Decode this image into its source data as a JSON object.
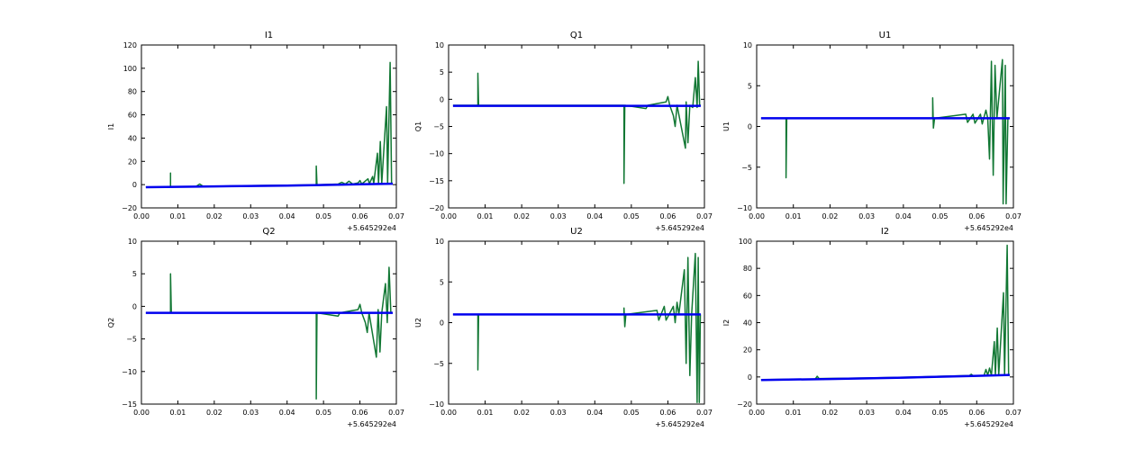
{
  "figure": {
    "background": "#ffffff",
    "colors": {
      "signal": "#117733",
      "baseline": "#0000ee",
      "axis": "#000000"
    }
  },
  "chart_data": [
    {
      "type": "line",
      "title": "I1",
      "ylabel": "I1",
      "xlim": [
        0.0,
        0.07
      ],
      "ylim": [
        -20,
        120
      ],
      "xticks": [
        "0.00",
        "0.01",
        "0.02",
        "0.03",
        "0.04",
        "0.05",
        "0.06",
        "0.07"
      ],
      "yticks": [
        -20,
        0,
        20,
        40,
        60,
        80,
        100,
        120
      ],
      "x_offset_label": "+5.645292e4",
      "series": [
        {
          "color": "#117733",
          "width": 1.5,
          "points": [
            [
              0.0012,
              -2
            ],
            [
              0.008,
              -2
            ],
            [
              0.008,
              10
            ],
            [
              0.008,
              -2
            ],
            [
              0.015,
              -1.5
            ],
            [
              0.016,
              0.5
            ],
            [
              0.017,
              -1.5
            ],
            [
              0.03,
              -0.8
            ],
            [
              0.04,
              -0.5
            ],
            [
              0.048,
              -0.2
            ],
            [
              0.048,
              16
            ],
            [
              0.0482,
              -0.2
            ],
            [
              0.054,
              0.5
            ],
            [
              0.055,
              2
            ],
            [
              0.056,
              0.5
            ],
            [
              0.057,
              3
            ],
            [
              0.058,
              0.5
            ],
            [
              0.0595,
              1.5
            ],
            [
              0.06,
              3.5
            ],
            [
              0.0605,
              0.5
            ],
            [
              0.0622,
              5
            ],
            [
              0.0626,
              0.8
            ],
            [
              0.0635,
              7
            ],
            [
              0.0638,
              1
            ],
            [
              0.0648,
              27
            ],
            [
              0.0651,
              1
            ],
            [
              0.0656,
              37
            ],
            [
              0.066,
              1
            ],
            [
              0.0673,
              67
            ],
            [
              0.0676,
              1
            ],
            [
              0.0683,
              105
            ],
            [
              0.0687,
              1
            ],
            [
              0.069,
              1
            ]
          ]
        },
        {
          "color": "#0000ee",
          "width": 2.5,
          "points": [
            [
              0.0012,
              -2.2
            ],
            [
              0.02,
              -1.5
            ],
            [
              0.04,
              -0.8
            ],
            [
              0.06,
              0.3
            ],
            [
              0.069,
              0.8
            ]
          ]
        }
      ]
    },
    {
      "type": "line",
      "title": "Q1",
      "ylabel": "Q1",
      "xlim": [
        0.0,
        0.07
      ],
      "ylim": [
        -20,
        10
      ],
      "xticks": [
        "0.00",
        "0.01",
        "0.02",
        "0.03",
        "0.04",
        "0.05",
        "0.06",
        "0.07"
      ],
      "yticks": [
        -20,
        -15,
        -10,
        -5,
        0,
        5,
        10
      ],
      "x_offset_label": "+5.645292e4",
      "series": [
        {
          "color": "#117733",
          "width": 1.5,
          "points": [
            [
              0.0012,
              -1.1
            ],
            [
              0.008,
              -1.1
            ],
            [
              0.008,
              4.8
            ],
            [
              0.0082,
              -1.1
            ],
            [
              0.048,
              -1.1
            ],
            [
              0.048,
              -15.5
            ],
            [
              0.0482,
              -1.1
            ],
            [
              0.054,
              -1.7
            ],
            [
              0.0545,
              -1.1
            ],
            [
              0.0595,
              -0.5
            ],
            [
              0.06,
              0.5
            ],
            [
              0.0605,
              -1.1
            ],
            [
              0.0615,
              -3
            ],
            [
              0.062,
              -5
            ],
            [
              0.0625,
              -1.1
            ],
            [
              0.0648,
              -9
            ],
            [
              0.065,
              -0.5
            ],
            [
              0.0655,
              -8
            ],
            [
              0.066,
              -1.1
            ],
            [
              0.0668,
              -1.5
            ],
            [
              0.0675,
              4
            ],
            [
              0.068,
              -1.5
            ],
            [
              0.0683,
              7
            ],
            [
              0.0687,
              -1.1
            ],
            [
              0.069,
              -1.1
            ]
          ]
        },
        {
          "color": "#0000ee",
          "width": 2.5,
          "points": [
            [
              0.0012,
              -1.2
            ],
            [
              0.069,
              -1.2
            ]
          ]
        }
      ]
    },
    {
      "type": "line",
      "title": "U1",
      "ylabel": "U1",
      "xlim": [
        0.0,
        0.07
      ],
      "ylim": [
        -10,
        10
      ],
      "xticks": [
        "0.00",
        "0.01",
        "0.02",
        "0.03",
        "0.04",
        "0.05",
        "0.06",
        "0.07"
      ],
      "yticks": [
        -10,
        -5,
        0,
        5,
        10
      ],
      "x_offset_label": "+5.645292e4",
      "series": [
        {
          "color": "#117733",
          "width": 1.5,
          "points": [
            [
              0.0012,
              1
            ],
            [
              0.008,
              1
            ],
            [
              0.008,
              -6.3
            ],
            [
              0.0082,
              1
            ],
            [
              0.048,
              1
            ],
            [
              0.048,
              3.5
            ],
            [
              0.0482,
              -0.2
            ],
            [
              0.0485,
              1
            ],
            [
              0.057,
              1.5
            ],
            [
              0.0575,
              0.5
            ],
            [
              0.059,
              1.5
            ],
            [
              0.0595,
              0.4
            ],
            [
              0.061,
              1.5
            ],
            [
              0.0615,
              0.3
            ],
            [
              0.0625,
              2
            ],
            [
              0.063,
              1
            ],
            [
              0.0635,
              -4
            ],
            [
              0.064,
              8
            ],
            [
              0.0645,
              -6
            ],
            [
              0.065,
              7.5
            ],
            [
              0.0655,
              1
            ],
            [
              0.067,
              8.2
            ],
            [
              0.0672,
              -9.5
            ],
            [
              0.0678,
              7.5
            ],
            [
              0.068,
              -9.5
            ],
            [
              0.0685,
              1
            ],
            [
              0.069,
              1
            ]
          ]
        },
        {
          "color": "#0000ee",
          "width": 2.5,
          "points": [
            [
              0.0012,
              1
            ],
            [
              0.069,
              1
            ]
          ]
        }
      ]
    },
    {
      "type": "line",
      "title": "Q2",
      "ylabel": "Q2",
      "xlim": [
        0.0,
        0.07
      ],
      "ylim": [
        -15,
        10
      ],
      "xticks": [
        "0.00",
        "0.01",
        "0.02",
        "0.03",
        "0.04",
        "0.05",
        "0.06",
        "0.07"
      ],
      "yticks": [
        -15,
        -10,
        -5,
        0,
        5,
        10
      ],
      "x_offset_label": "+5.645292e4",
      "series": [
        {
          "color": "#117733",
          "width": 1.5,
          "points": [
            [
              0.0012,
              -1
            ],
            [
              0.008,
              -1
            ],
            [
              0.008,
              5
            ],
            [
              0.0082,
              -1
            ],
            [
              0.048,
              -1
            ],
            [
              0.048,
              -14.2
            ],
            [
              0.0482,
              -1
            ],
            [
              0.054,
              -1.5
            ],
            [
              0.0545,
              -1
            ],
            [
              0.0595,
              -0.5
            ],
            [
              0.06,
              0.3
            ],
            [
              0.0605,
              -1
            ],
            [
              0.0615,
              -2.5
            ],
            [
              0.062,
              -4
            ],
            [
              0.0625,
              -1
            ],
            [
              0.0645,
              -7.8
            ],
            [
              0.065,
              -0.5
            ],
            [
              0.0655,
              -7
            ],
            [
              0.066,
              -1
            ],
            [
              0.067,
              3.5
            ],
            [
              0.0675,
              -2.5
            ],
            [
              0.068,
              6
            ],
            [
              0.0685,
              -1
            ],
            [
              0.069,
              -1
            ]
          ]
        },
        {
          "color": "#0000ee",
          "width": 2.5,
          "points": [
            [
              0.0012,
              -1
            ],
            [
              0.069,
              -1
            ]
          ]
        }
      ]
    },
    {
      "type": "line",
      "title": "U2",
      "ylabel": "U2",
      "xlim": [
        0.0,
        0.07
      ],
      "ylim": [
        -10,
        10
      ],
      "xticks": [
        "0.00",
        "0.01",
        "0.02",
        "0.03",
        "0.04",
        "0.05",
        "0.06",
        "0.07"
      ],
      "yticks": [
        -10,
        -5,
        0,
        5,
        10
      ],
      "x_offset_label": "+5.645292e4",
      "series": [
        {
          "color": "#117733",
          "width": 1.5,
          "points": [
            [
              0.0012,
              1
            ],
            [
              0.008,
              1
            ],
            [
              0.008,
              -5.8
            ],
            [
              0.0082,
              1
            ],
            [
              0.048,
              1
            ],
            [
              0.048,
              1.8
            ],
            [
              0.0482,
              -0.5
            ],
            [
              0.0485,
              1
            ],
            [
              0.057,
              1.5
            ],
            [
              0.0575,
              0.3
            ],
            [
              0.059,
              2
            ],
            [
              0.0595,
              0.3
            ],
            [
              0.0615,
              2
            ],
            [
              0.062,
              0
            ],
            [
              0.0625,
              2.5
            ],
            [
              0.063,
              1
            ],
            [
              0.0645,
              6.5
            ],
            [
              0.065,
              -5
            ],
            [
              0.0655,
              8
            ],
            [
              0.066,
              -6.5
            ],
            [
              0.0665,
              1
            ],
            [
              0.0675,
              8.5
            ],
            [
              0.068,
              -9.8
            ],
            [
              0.0683,
              8
            ],
            [
              0.0686,
              -9.8
            ],
            [
              0.0689,
              1
            ],
            [
              0.069,
              1
            ]
          ]
        },
        {
          "color": "#0000ee",
          "width": 2.5,
          "points": [
            [
              0.0012,
              1
            ],
            [
              0.069,
              1
            ]
          ]
        }
      ]
    },
    {
      "type": "line",
      "title": "I2",
      "ylabel": "I2",
      "xlim": [
        0.0,
        0.07
      ],
      "ylim": [
        -20,
        100
      ],
      "xticks": [
        "0.00",
        "0.01",
        "0.02",
        "0.03",
        "0.04",
        "0.05",
        "0.06",
        "0.07"
      ],
      "yticks": [
        -20,
        0,
        20,
        40,
        60,
        80,
        100
      ],
      "x_offset_label": "+5.645292e4",
      "series": [
        {
          "color": "#117733",
          "width": 1.5,
          "points": [
            [
              0.0012,
              -2
            ],
            [
              0.016,
              -1.5
            ],
            [
              0.0165,
              0.5
            ],
            [
              0.017,
              -1.2
            ],
            [
              0.03,
              -0.8
            ],
            [
              0.045,
              0
            ],
            [
              0.05,
              0.5
            ],
            [
              0.058,
              1
            ],
            [
              0.0585,
              2
            ],
            [
              0.059,
              1
            ],
            [
              0.062,
              1
            ],
            [
              0.0625,
              5.5
            ],
            [
              0.063,
              1.2
            ],
            [
              0.0635,
              6.5
            ],
            [
              0.064,
              1.3
            ],
            [
              0.0648,
              26
            ],
            [
              0.0651,
              1.3
            ],
            [
              0.0656,
              36
            ],
            [
              0.066,
              1.3
            ],
            [
              0.0673,
              62
            ],
            [
              0.0676,
              1.3
            ],
            [
              0.0683,
              97
            ],
            [
              0.0687,
              1.3
            ],
            [
              0.069,
              1.3
            ]
          ]
        },
        {
          "color": "#0000ee",
          "width": 2.5,
          "points": [
            [
              0.0012,
              -2.2
            ],
            [
              0.02,
              -1.5
            ],
            [
              0.04,
              -0.5
            ],
            [
              0.06,
              0.8
            ],
            [
              0.069,
              1.5
            ]
          ]
        }
      ]
    }
  ]
}
